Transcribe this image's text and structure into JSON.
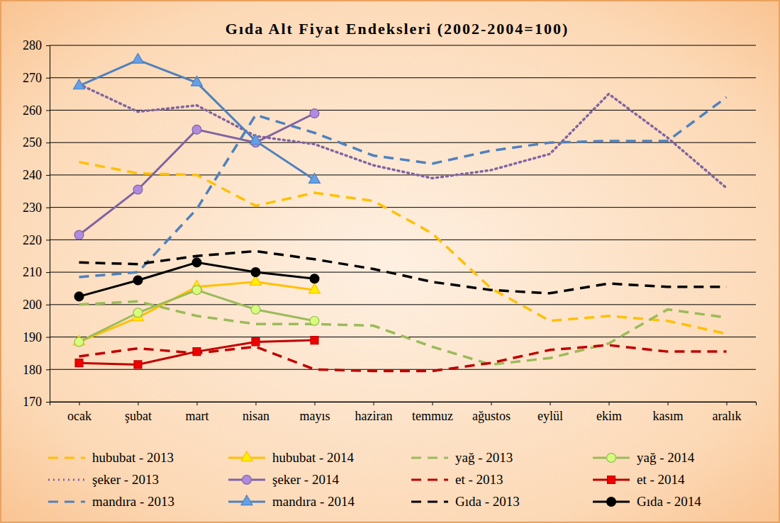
{
  "chart_data": {
    "type": "line",
    "title": "Gıda Alt Fiyat Endeksleri (2002-2004=100)",
    "categories": [
      "ocak",
      "şubat",
      "mart",
      "nisan",
      "mayıs",
      "haziran",
      "temmuz",
      "ağustos",
      "eylül",
      "ekim",
      "kasım",
      "aralık"
    ],
    "ylim": [
      170,
      280
    ],
    "yticks": [
      170,
      180,
      190,
      200,
      210,
      220,
      230,
      240,
      250,
      260,
      270,
      280
    ],
    "grid": true,
    "legend": "bottom",
    "series": [
      {
        "name": "hububat - 2013",
        "color": "#FFC000",
        "line_style": "dashed",
        "marker": "none",
        "values": [
          244,
          240.5,
          240,
          230.5,
          234.5,
          232,
          222,
          205,
          195,
          196.5,
          195,
          191
        ]
      },
      {
        "name": "hububat - 2014",
        "color": "#FFC000",
        "line_style": "solid",
        "marker": "triangle",
        "values": [
          188.5,
          196,
          205.5,
          207,
          204.5,
          null,
          null,
          null,
          null,
          null,
          null,
          null
        ]
      },
      {
        "name": "yağ - 2013",
        "color": "#9BBB59",
        "line_style": "dashed",
        "marker": "none",
        "values": [
          200,
          201,
          196.5,
          194,
          194,
          193.5,
          187,
          181.5,
          183.5,
          188,
          198.5,
          196
        ]
      },
      {
        "name": "yağ - 2014",
        "color": "#9BBB59",
        "line_style": "solid",
        "marker": "circle",
        "values": [
          188.5,
          197.5,
          204.5,
          198.5,
          195,
          null,
          null,
          null,
          null,
          null,
          null,
          null
        ]
      },
      {
        "name": "şeker - 2013",
        "color": "#8064A2",
        "line_style": "dotted",
        "marker": "none",
        "values": [
          268,
          259.5,
          261.5,
          252,
          249.5,
          243,
          239,
          241.5,
          246.5,
          265,
          251.5,
          236
        ]
      },
      {
        "name": "şeker - 2014",
        "color": "#8064A2",
        "line_style": "solid",
        "marker": "circle",
        "values": [
          221.5,
          235.5,
          254,
          250,
          259,
          null,
          null,
          null,
          null,
          null,
          null,
          null
        ]
      },
      {
        "name": "et - 2013",
        "color": "#C00000",
        "line_style": "dashed",
        "marker": "none",
        "values": [
          184,
          186.5,
          185,
          187,
          180,
          179.5,
          179.5,
          182,
          186,
          187.5,
          185.5,
          185.5
        ]
      },
      {
        "name": "et - 2014",
        "color": "#C00000",
        "line_style": "solid",
        "marker": "square",
        "values": [
          182,
          181.5,
          185.5,
          188.5,
          189,
          null,
          null,
          null,
          null,
          null,
          null,
          null
        ]
      },
      {
        "name": "mandıra - 2013",
        "color": "#4F81BD",
        "line_style": "dashed",
        "marker": "none",
        "values": [
          208.5,
          210,
          229.5,
          258.5,
          253,
          246,
          243.5,
          247.5,
          250,
          250.5,
          250.5,
          264
        ]
      },
      {
        "name": "mandıra - 2014",
        "color": "#4F81BD",
        "line_style": "solid",
        "marker": "triangle",
        "values": [
          267.5,
          275.5,
          268.5,
          250.5,
          238.5,
          null,
          null,
          null,
          null,
          null,
          null,
          null
        ]
      },
      {
        "name": "Gıda - 2013",
        "color": "#000000",
        "line_style": "dashed",
        "marker": "none",
        "values": [
          213,
          212.5,
          215,
          216.5,
          214,
          211,
          207,
          204.5,
          203.5,
          206.5,
          205.5,
          205.5
        ]
      },
      {
        "name": "Gıda - 2014",
        "color": "#000000",
        "line_style": "solid",
        "marker": "circle",
        "values": [
          202.5,
          207.5,
          213,
          210,
          208,
          null,
          null,
          null,
          null,
          null,
          null,
          null
        ]
      }
    ]
  }
}
